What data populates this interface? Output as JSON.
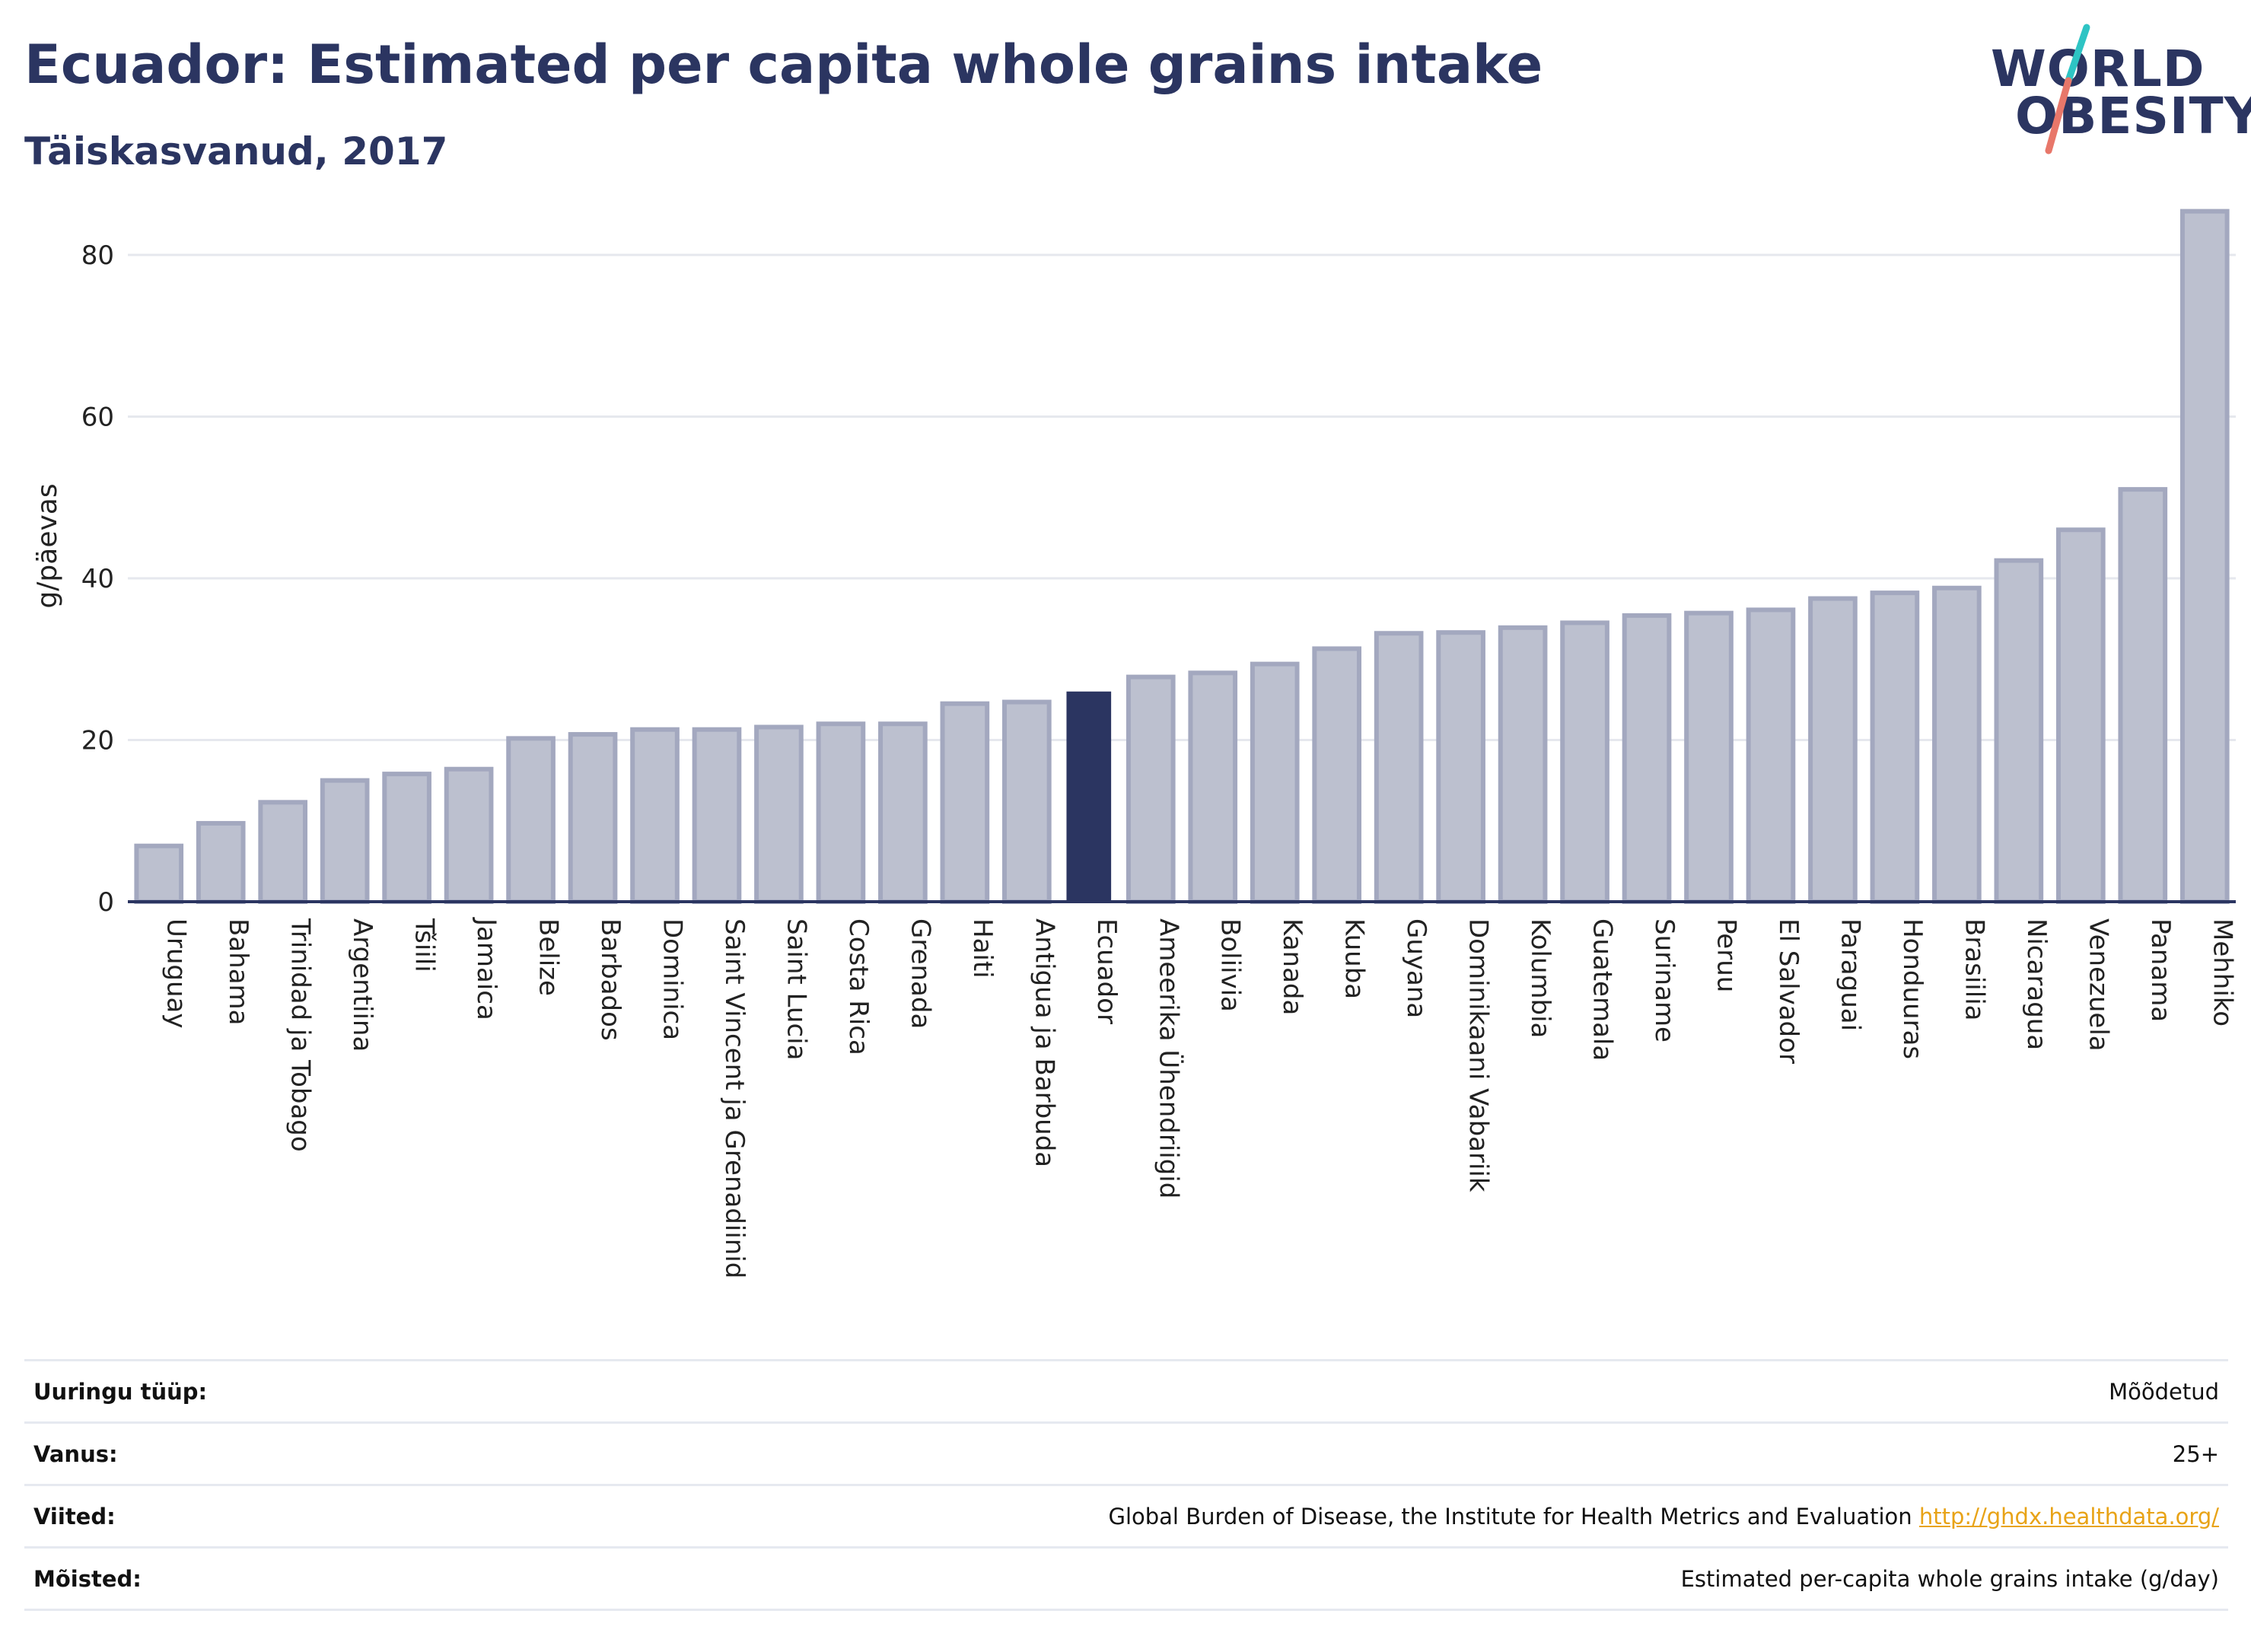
{
  "header": {
    "title": "Ecuador: Estimated per capita whole grains intake",
    "subtitle": "Täiskasvanud, 2017"
  },
  "logo": {
    "line1": "WORLD",
    "line2": "OBESITY",
    "slash_colors": [
      "#2ec4c4",
      "#e8776a"
    ]
  },
  "colors": {
    "bar": "#bcc0cf",
    "bar_border": "#a3a8bf",
    "highlight": "#2b3561",
    "grid": "#e6e8ee",
    "axis": "#2b3561"
  },
  "chart_data": {
    "type": "bar",
    "ylabel": "g/päevas",
    "ylim": [
      0,
      88
    ],
    "yticks": [
      0,
      20,
      40,
      60,
      80
    ],
    "grid": true,
    "highlight": "Ecuador",
    "categories": [
      "Uruguay",
      "Bahama",
      "Trinidad ja Tobago",
      "Argentiina",
      "Tšiili",
      "Jamaica",
      "Belize",
      "Barbados",
      "Dominica",
      "Saint Vincent ja Grenadiinid",
      "Saint Lucia",
      "Costa Rica",
      "Grenada",
      "Haiti",
      "Antigua ja Barbuda",
      "Ecuador",
      "Ameerika Ühendriigid",
      "Boliivia",
      "Kanada",
      "Kuuba",
      "Guyana",
      "Dominikaani Vabariik",
      "Kolumbia",
      "Guatemala",
      "Suriname",
      "Peruu",
      "El Salvador",
      "Paraguai",
      "Honduuras",
      "Brasiilia",
      "Nicaragua",
      "Venezuela",
      "Panama",
      "Mehhiko"
    ],
    "values": [
      6.9,
      9.7,
      12.3,
      15.0,
      15.8,
      16.4,
      20.2,
      20.7,
      21.3,
      21.3,
      21.6,
      22.0,
      22.0,
      24.5,
      24.7,
      26.0,
      27.8,
      28.3,
      29.4,
      31.3,
      33.2,
      33.3,
      33.9,
      34.5,
      35.4,
      35.7,
      36.1,
      37.5,
      38.2,
      38.8,
      42.2,
      46.0,
      51.0,
      85.4
    ]
  },
  "info": [
    {
      "label": "Uuringu tüüp:",
      "value": "Mõõdetud"
    },
    {
      "label": "Vanus:",
      "value": "25+"
    },
    {
      "label": "Viited:",
      "value": "Global Burden of Disease, the Institute for Health Metrics and Evaluation",
      "link": "http://ghdx.healthdata.org/"
    },
    {
      "label": "Mõisted:",
      "value": "Estimated per-capita whole grains intake (g/day)"
    }
  ]
}
